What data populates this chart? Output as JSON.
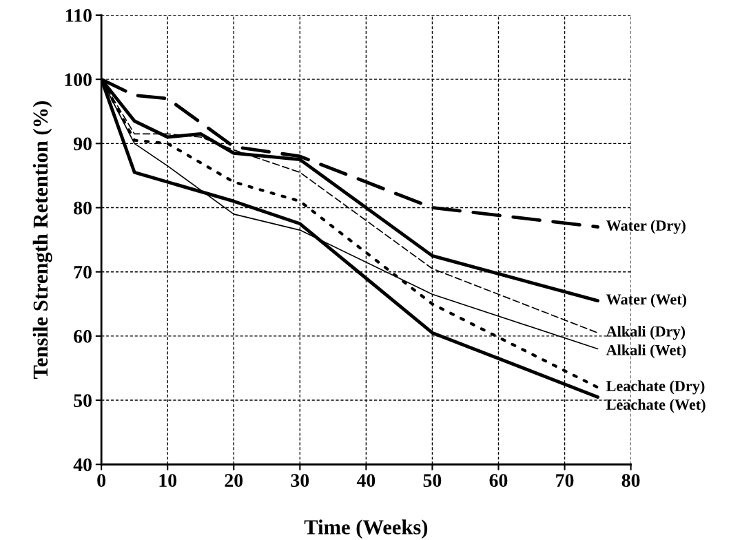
{
  "chart_data": {
    "type": "line",
    "xlabel": "Time (Weeks)",
    "ylabel": "Tensile Strength Retention (%)",
    "xlim": [
      0,
      80
    ],
    "xticks": [
      0,
      10,
      20,
      30,
      40,
      50,
      60,
      70,
      80
    ],
    "ylim": [
      40,
      110
    ],
    "yticks": [
      40,
      50,
      60,
      70,
      80,
      90,
      100,
      110
    ],
    "grid": true,
    "legend": false,
    "marker": "none",
    "series": [
      {
        "name": "Water (Dry)",
        "color": "#000000",
        "line_style": "dashed",
        "x": [
          0,
          5,
          10,
          20,
          30,
          50,
          75
        ],
        "values": [
          100,
          97.5,
          97,
          89.5,
          88,
          80,
          77
        ]
      },
      {
        "name": "Water (Wet)",
        "color": "#000000",
        "line_style": "solid",
        "x": [
          0,
          5,
          10,
          15,
          20,
          30,
          50,
          75
        ],
        "values": [
          100,
          93.5,
          91,
          91.5,
          88.5,
          87.5,
          72.5,
          65.5
        ]
      },
      {
        "name": "Alkali (Dry)",
        "color": "#000000",
        "line_style": "dashed",
        "x": [
          0,
          5,
          10,
          15,
          20,
          30,
          50,
          75
        ],
        "values": [
          100,
          91.5,
          91.5,
          91,
          89,
          85.5,
          70.5,
          60.5
        ]
      },
      {
        "name": "Alkali (Wet)",
        "color": "#000000",
        "line_style": "solid",
        "x": [
          0,
          5,
          10,
          20,
          30,
          50,
          75
        ],
        "values": [
          100,
          90,
          86.5,
          79,
          76.5,
          66.5,
          58
        ]
      },
      {
        "name": "Leachate (Dry)",
        "color": "#000000",
        "line_style": "dotted",
        "x": [
          0,
          5,
          10,
          20,
          30,
          50,
          75
        ],
        "values": [
          100,
          90.5,
          90,
          84,
          81,
          65,
          52
        ]
      },
      {
        "name": "Leachate (Wet)",
        "color": "#000000",
        "line_style": "solid",
        "x": [
          0,
          5,
          10,
          20,
          30,
          50,
          75
        ],
        "values": [
          100,
          85.5,
          84,
          81,
          77.5,
          60.5,
          50.5
        ]
      }
    ]
  }
}
